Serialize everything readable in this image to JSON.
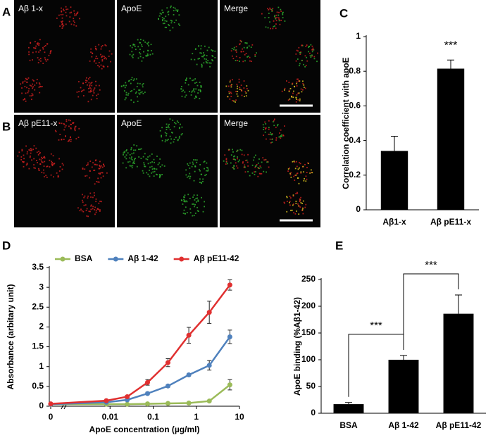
{
  "figure": {
    "images": [
      {
        "panel_label": "A",
        "labels": [
          "Aβ 1-x",
          "ApoE",
          "Merge"
        ]
      },
      {
        "panel_label": "B",
        "labels": [
          "Aβ pE11-x",
          "ApoE",
          "Merge"
        ]
      }
    ]
  },
  "chart_data": [
    {
      "type": "bar",
      "panel_label": "C",
      "ylabel": "Correlation coefficient with apoE",
      "categories": [
        "Aβ1-x",
        "Aβ pE11-x"
      ],
      "values": [
        0.34,
        0.815
      ],
      "errors": [
        0.085,
        0.05
      ],
      "significance": [
        null,
        "***"
      ],
      "color": "#000000",
      "ylim": [
        0,
        1
      ],
      "yticks": [
        0,
        0.2,
        0.4,
        0.6,
        0.8,
        1
      ]
    },
    {
      "type": "line",
      "panel_label": "D",
      "xlabel": "ApoE concentration (µg/ml)",
      "ylabel": "Absorbance (arbitary unit)",
      "xscale": "log",
      "legend": "top",
      "x": [
        0,
        0.0082,
        0.025,
        0.074,
        0.22,
        0.67,
        2,
        6
      ],
      "series": [
        {
          "name": "BSA",
          "color": "#9bbb59",
          "values": [
            0.05,
            0.05,
            0.05,
            0.06,
            0.07,
            0.08,
            0.13,
            0.54
          ],
          "errors": [
            0.01,
            0.01,
            0.01,
            0.01,
            0.01,
            0.01,
            0.02,
            0.13
          ]
        },
        {
          "name": "Aβ 1-42",
          "color": "#4f81bd",
          "values": [
            0.05,
            0.1,
            0.16,
            0.32,
            0.51,
            0.79,
            1.03,
            1.75
          ],
          "errors": [
            0.02,
            0.02,
            0.03,
            0.03,
            0.03,
            0.03,
            0.12,
            0.17
          ]
        },
        {
          "name": "Aβ pE11-42",
          "color": "#e03030",
          "values": [
            0.06,
            0.14,
            0.24,
            0.6,
            1.1,
            1.79,
            2.37,
            3.06
          ],
          "errors": [
            0.02,
            0.02,
            0.03,
            0.07,
            0.1,
            0.2,
            0.28,
            0.13
          ]
        }
      ],
      "xlim": [
        0,
        10
      ],
      "xticks": [
        0,
        0.01,
        0.1,
        1,
        10
      ],
      "ylim": [
        0,
        3.5
      ],
      "yticks": [
        0,
        0.5,
        1,
        1.5,
        2,
        2.5,
        3,
        3.5
      ]
    },
    {
      "type": "bar",
      "panel_label": "E",
      "ylabel": "ApoE binding (%Aβ1-42)",
      "categories": [
        "BSA",
        "Aβ 1-42",
        "Aβ pE11-42"
      ],
      "values": [
        17,
        100,
        186
      ],
      "errors": [
        3,
        8,
        35
      ],
      "comparisons": [
        {
          "between": [
            0,
            1
          ],
          "label": "***"
        },
        {
          "between": [
            1,
            2
          ],
          "label": "***"
        }
      ],
      "color": "#000000",
      "ylim": [
        0,
        250
      ],
      "yticks": [
        0,
        50,
        100,
        150,
        200,
        250
      ]
    }
  ]
}
